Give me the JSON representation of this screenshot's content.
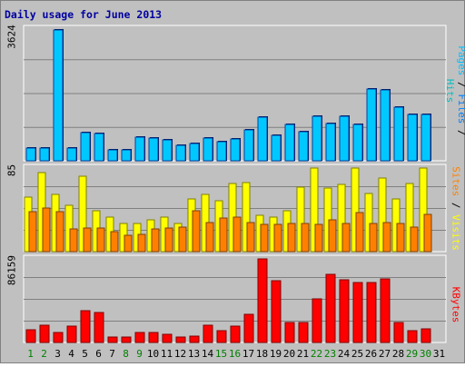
{
  "chart_data": {
    "type": "bar",
    "title": "Daily usage for June 2013",
    "days": [
      "1",
      "2",
      "3",
      "4",
      "5",
      "6",
      "7",
      "8",
      "9",
      "10",
      "11",
      "12",
      "13",
      "14",
      "15",
      "16",
      "17",
      "18",
      "19",
      "20",
      "21",
      "22",
      "23",
      "24",
      "25",
      "26",
      "27",
      "28",
      "29",
      "30",
      "31"
    ],
    "weekend_days": [
      "1",
      "2",
      "8",
      "9",
      "15",
      "16",
      "22",
      "23",
      "29",
      "30"
    ],
    "panels": [
      {
        "id": "top",
        "max_label": "3624",
        "max": 3624,
        "series": [
          {
            "name": "Hits",
            "color": "#00c0c0",
            "values": [
              380,
              380,
              3624,
              380,
              800,
              770,
              330,
              330,
              680,
              640,
              600,
              450,
              510,
              650,
              560,
              620,
              880,
              1220,
              720,
              1030,
              820,
              1240,
              1040,
              1260,
              1030,
              1990,
              1980,
              1500,
              1300,
              1300,
              0
            ]
          },
          {
            "name": "Files",
            "color": "#0080ff",
            "values": [
              0,
              0,
              0,
              0,
              0,
              0,
              0,
              0,
              0,
              0,
              0,
              0,
              0,
              0,
              0,
              0,
              0,
              0,
              0,
              0,
              0,
              0,
              0,
              0,
              0,
              0,
              0,
              0,
              0,
              0,
              0
            ]
          },
          {
            "name": "Pages",
            "color": "#00c0ff",
            "values": [
              0,
              0,
              0,
              0,
              0,
              0,
              0,
              0,
              0,
              0,
              0,
              0,
              0,
              0,
              0,
              0,
              0,
              0,
              0,
              0,
              0,
              0,
              0,
              0,
              0,
              0,
              0,
              0,
              0,
              0,
              0
            ]
          }
        ],
        "axis_labels": [
          "Pages",
          "Files",
          "Hits"
        ]
      },
      {
        "id": "middle",
        "max_label": "85",
        "max": 85,
        "series": [
          {
            "name": "Visits",
            "color": "#ffff00",
            "values": [
              55,
              80,
              58,
              47,
              77,
              42,
              35,
              29,
              29,
              32,
              35,
              29,
              54,
              58,
              52,
              69,
              70,
              37,
              35,
              42,
              66,
              85,
              65,
              68,
              85,
              59,
              75,
              54,
              69,
              85,
              0
            ]
          },
          {
            "name": "Sites",
            "color": "#ff8000",
            "values": [
              41,
              44,
              41,
              23,
              24,
              24,
              20,
              17,
              18,
              23,
              24,
              25,
              42,
              30,
              34,
              35,
              30,
              28,
              28,
              29,
              29,
              28,
              32,
              29,
              40,
              29,
              30,
              29,
              25,
              38,
              0
            ]
          }
        ],
        "axis_labels": [
          "Sites",
          "Visits"
        ]
      },
      {
        "id": "bottom",
        "max_label": "86159",
        "max": 86159,
        "series": [
          {
            "name": "KBytes",
            "color": "#ff0000",
            "values": [
              13000,
              18000,
              10000,
              17000,
              33000,
              31000,
              6000,
              6000,
              10000,
              10000,
              8000,
              6000,
              7000,
              18000,
              12000,
              17000,
              29000,
              86159,
              64000,
              21000,
              21000,
              45000,
              70000,
              65000,
              62000,
              62000,
              66000,
              21000,
              12000,
              14000,
              0
            ]
          }
        ],
        "axis_labels": [
          "KBytes"
        ]
      }
    ]
  }
}
